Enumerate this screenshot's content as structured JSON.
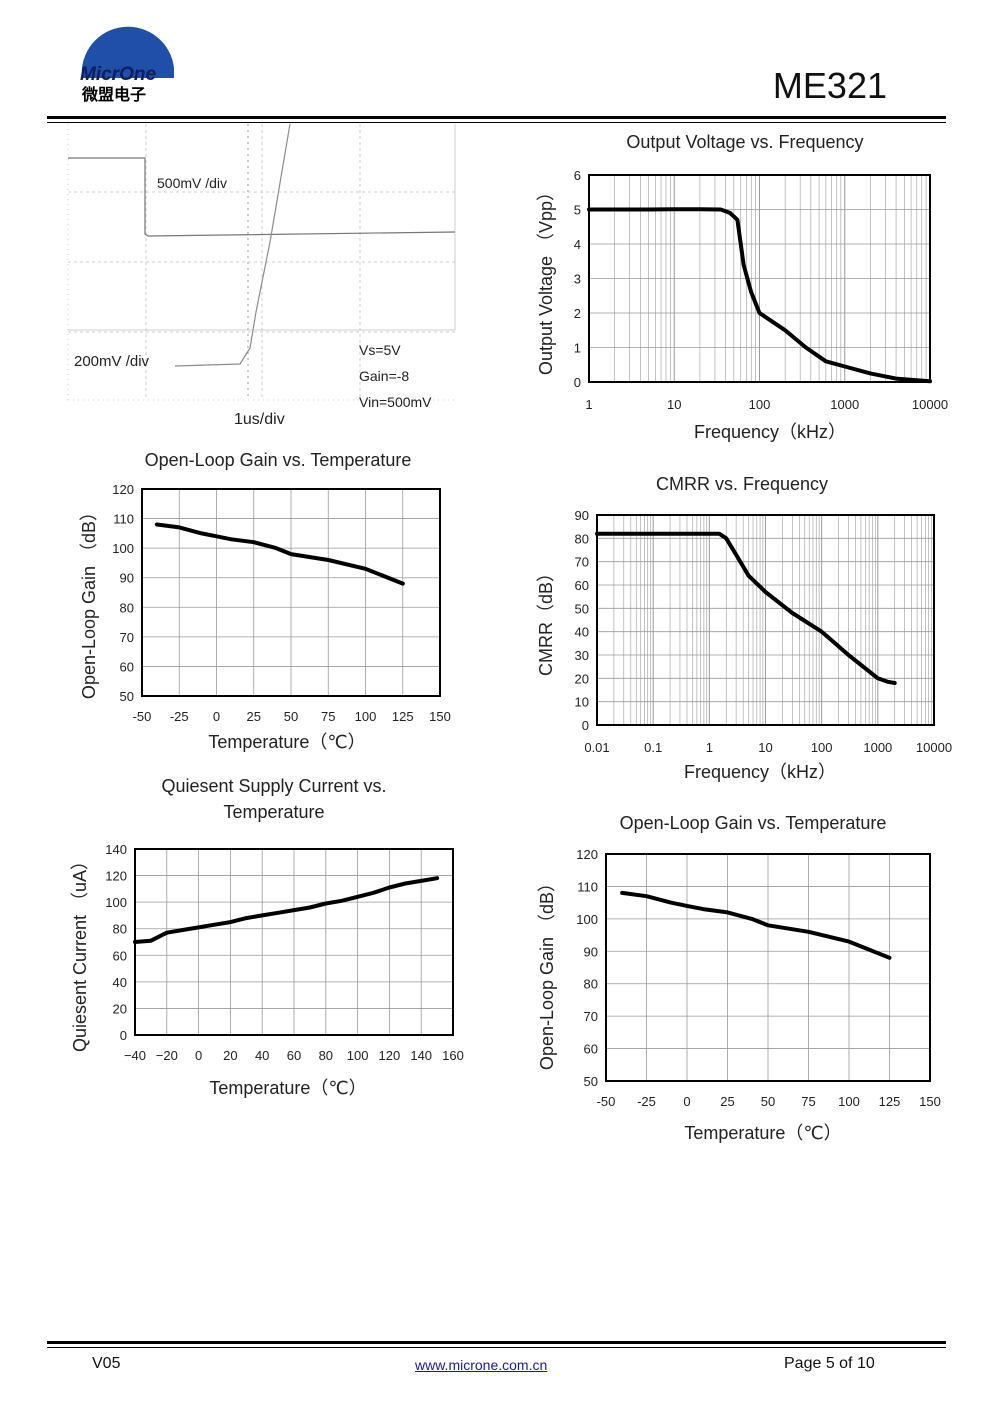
{
  "header": {
    "logo_text": "MicrOne",
    "logo_cn": "微盟电子",
    "part_number": "ME321"
  },
  "scope": {
    "ch1_scale": "500mV /div",
    "ch2_scale": "200mV /div",
    "time_scale": "1us/div",
    "cond_vs": "Vs=5V",
    "cond_gain": "Gain=-8",
    "cond_vin": "Vin=500mV"
  },
  "charts": {
    "output_voltage": {
      "title": "Output Voltage vs. Frequency",
      "ylabel": "Output Voltage （Vpp）",
      "xlabel": "Frequency（kHz）",
      "yticks": [
        "0",
        "1",
        "2",
        "3",
        "4",
        "5",
        "6"
      ],
      "xticks": [
        "1",
        "10",
        "100",
        "1000",
        "10000"
      ]
    },
    "olg_1": {
      "title": "Open-Loop Gain vs. Temperature",
      "ylabel": "Open-Loop Gain （dB）",
      "xlabel": "Temperature（℃）",
      "yticks": [
        "50",
        "60",
        "70",
        "80",
        "90",
        "100",
        "110",
        "120"
      ],
      "xticks": [
        "-50",
        "-25",
        "0",
        "25",
        "50",
        "75",
        "100",
        "125",
        "150"
      ]
    },
    "cmrr": {
      "title": "CMRR vs. Frequency",
      "ylabel": "CMRR（dB）",
      "xlabel": "Frequency（kHz）",
      "yticks": [
        "0",
        "10",
        "20",
        "30",
        "40",
        "50",
        "60",
        "70",
        "80",
        "90"
      ],
      "xticks": [
        "0.01",
        "0.1",
        "1",
        "10",
        "100",
        "1000",
        "10000"
      ]
    },
    "quiescent": {
      "title_line1": "Quiesent Supply Current vs.",
      "title_line2": "Temperature",
      "ylabel": "Quiesent Current （uA）",
      "xlabel": "Temperature（℃）",
      "yticks": [
        "0",
        "20",
        "40",
        "60",
        "80",
        "100",
        "120",
        "140"
      ],
      "xticks": [
        "−40",
        "−20",
        "0",
        "20",
        "40",
        "60",
        "80",
        "100",
        "120",
        "140",
        "160"
      ]
    },
    "olg_2": {
      "title": "Open-Loop Gain vs. Temperature",
      "ylabel": "Open-Loop Gain （dB）",
      "xlabel": "Temperature（℃）",
      "yticks": [
        "50",
        "60",
        "70",
        "80",
        "90",
        "100",
        "110",
        "120"
      ],
      "xticks": [
        "-50",
        "-25",
        "0",
        "25",
        "50",
        "75",
        "100",
        "125",
        "150"
      ]
    }
  },
  "chart_data": [
    {
      "type": "line",
      "title": "Output Voltage vs. Frequency",
      "xlabel": "Frequency（kHz）",
      "ylabel": "Output Voltage （Vpp）",
      "xscale": "log",
      "xlim": [
        1,
        10000
      ],
      "ylim": [
        0,
        6
      ],
      "grid": true,
      "x": [
        1,
        5,
        10,
        20,
        35,
        45,
        55,
        65,
        80,
        100,
        200,
        350,
        600,
        1000,
        2000,
        4000,
        7000,
        10000
      ],
      "y": [
        5.0,
        5.0,
        5.01,
        5.01,
        5.0,
        4.9,
        4.7,
        3.4,
        2.6,
        2.0,
        1.5,
        1.0,
        0.6,
        0.45,
        0.25,
        0.1,
        0.05,
        0.02
      ]
    },
    {
      "type": "line",
      "title": "Open-Loop Gain vs. Temperature",
      "xlabel": "Temperature（℃）",
      "ylabel": "Open-Loop Gain （dB）",
      "xlim": [
        -50,
        150
      ],
      "ylim": [
        50,
        120
      ],
      "grid": true,
      "x": [
        -40,
        -25,
        -10,
        0,
        10,
        25,
        40,
        50,
        75,
        100,
        125
      ],
      "y": [
        108,
        107,
        105,
        104,
        103,
        102,
        100,
        98,
        96,
        93,
        88
      ]
    },
    {
      "type": "line",
      "title": "CMRR vs. Frequency",
      "xlabel": "Frequency（kHz）",
      "ylabel": "CMRR（dB）",
      "xscale": "log",
      "xlim": [
        0.01,
        10000
      ],
      "ylim": [
        0,
        90
      ],
      "grid": true,
      "x": [
        0.01,
        0.1,
        0.5,
        1,
        1.5,
        2,
        3,
        5,
        10,
        30,
        100,
        300,
        1000,
        1500,
        2000
      ],
      "y": [
        82,
        82,
        82,
        82,
        82,
        80,
        73,
        64,
        57,
        48,
        40,
        30,
        20,
        18.5,
        18
      ]
    },
    {
      "type": "line",
      "title": "Quiesent Supply Current vs. Temperature",
      "xlabel": "Temperature（℃）",
      "ylabel": "Quiesent Current （uA）",
      "xlim": [
        -40,
        160
      ],
      "ylim": [
        0,
        140
      ],
      "grid": true,
      "x": [
        -40,
        -30,
        -25,
        -20,
        -10,
        0,
        10,
        20,
        30,
        40,
        50,
        60,
        70,
        80,
        90,
        100,
        110,
        120,
        130,
        140,
        150
      ],
      "y": [
        70,
        71,
        74,
        77,
        79,
        81,
        83,
        85,
        88,
        90,
        92,
        94,
        96,
        99,
        101,
        104,
        107,
        111,
        114,
        116,
        118
      ]
    },
    {
      "type": "line",
      "title": "Open-Loop Gain vs. Temperature",
      "xlabel": "Temperature（℃）",
      "ylabel": "Open-Loop Gain （dB）",
      "xlim": [
        -50,
        150
      ],
      "ylim": [
        50,
        120
      ],
      "grid": true,
      "x": [
        -40,
        -25,
        -10,
        0,
        10,
        25,
        40,
        50,
        75,
        100,
        125
      ],
      "y": [
        108,
        107,
        105,
        104,
        103,
        102,
        100,
        98,
        96,
        93,
        88
      ]
    }
  ],
  "footer": {
    "version": "V05",
    "website": "www.microne.com.cn",
    "page": "Page 5 of 10"
  }
}
